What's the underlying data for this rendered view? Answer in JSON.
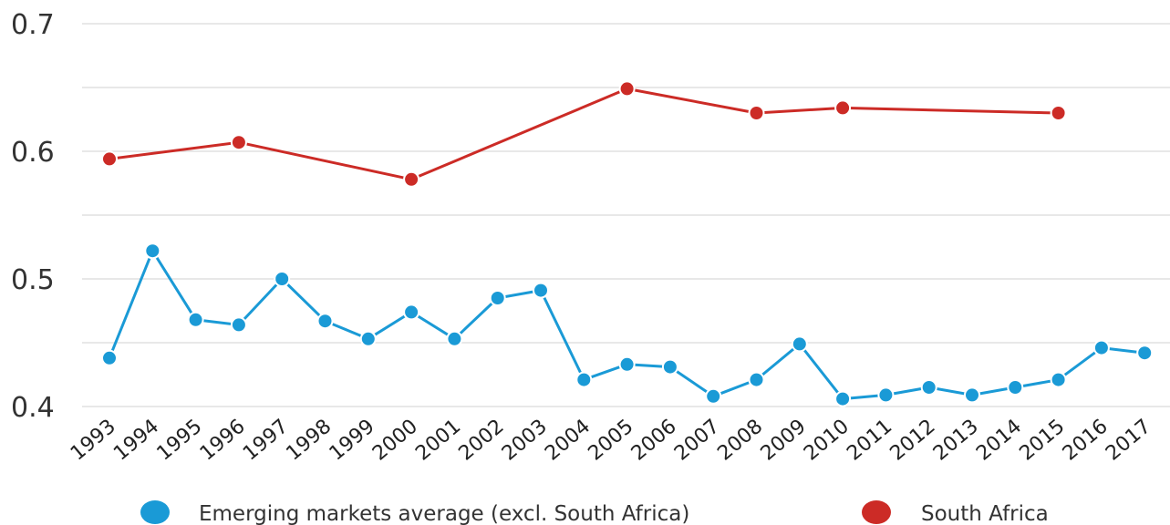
{
  "chart_data": {
    "type": "line",
    "x": [
      "1993",
      "1994",
      "1995",
      "1996",
      "1997",
      "1998",
      "1999",
      "2000",
      "2001",
      "2002",
      "2003",
      "2004",
      "2005",
      "2006",
      "2007",
      "2008",
      "2009",
      "2010",
      "2011",
      "2012",
      "2013",
      "2014",
      "2015",
      "2016",
      "2017"
    ],
    "ylim": [
      0.4,
      0.7
    ],
    "yticks": [
      "0.4",
      "0.5",
      "0.6",
      "0.7"
    ],
    "grid": true,
    "legend_position": "bottom",
    "series": [
      {
        "name": "Emerging markets average (excl. South Africa)",
        "color": "#1a9ad6",
        "values": [
          0.438,
          0.522,
          0.468,
          0.464,
          0.5,
          0.467,
          0.453,
          0.474,
          0.453,
          0.485,
          0.491,
          0.421,
          0.433,
          0.431,
          0.408,
          0.421,
          0.449,
          0.406,
          0.409,
          0.415,
          0.409,
          0.415,
          0.421,
          0.446,
          0.442
        ]
      },
      {
        "name": "South Africa",
        "color": "#cc2b26",
        "values": [
          0.594,
          null,
          null,
          0.607,
          null,
          null,
          null,
          0.578,
          null,
          null,
          null,
          null,
          0.649,
          null,
          null,
          0.63,
          null,
          0.634,
          null,
          null,
          null,
          null,
          0.63,
          null,
          null
        ]
      }
    ]
  }
}
